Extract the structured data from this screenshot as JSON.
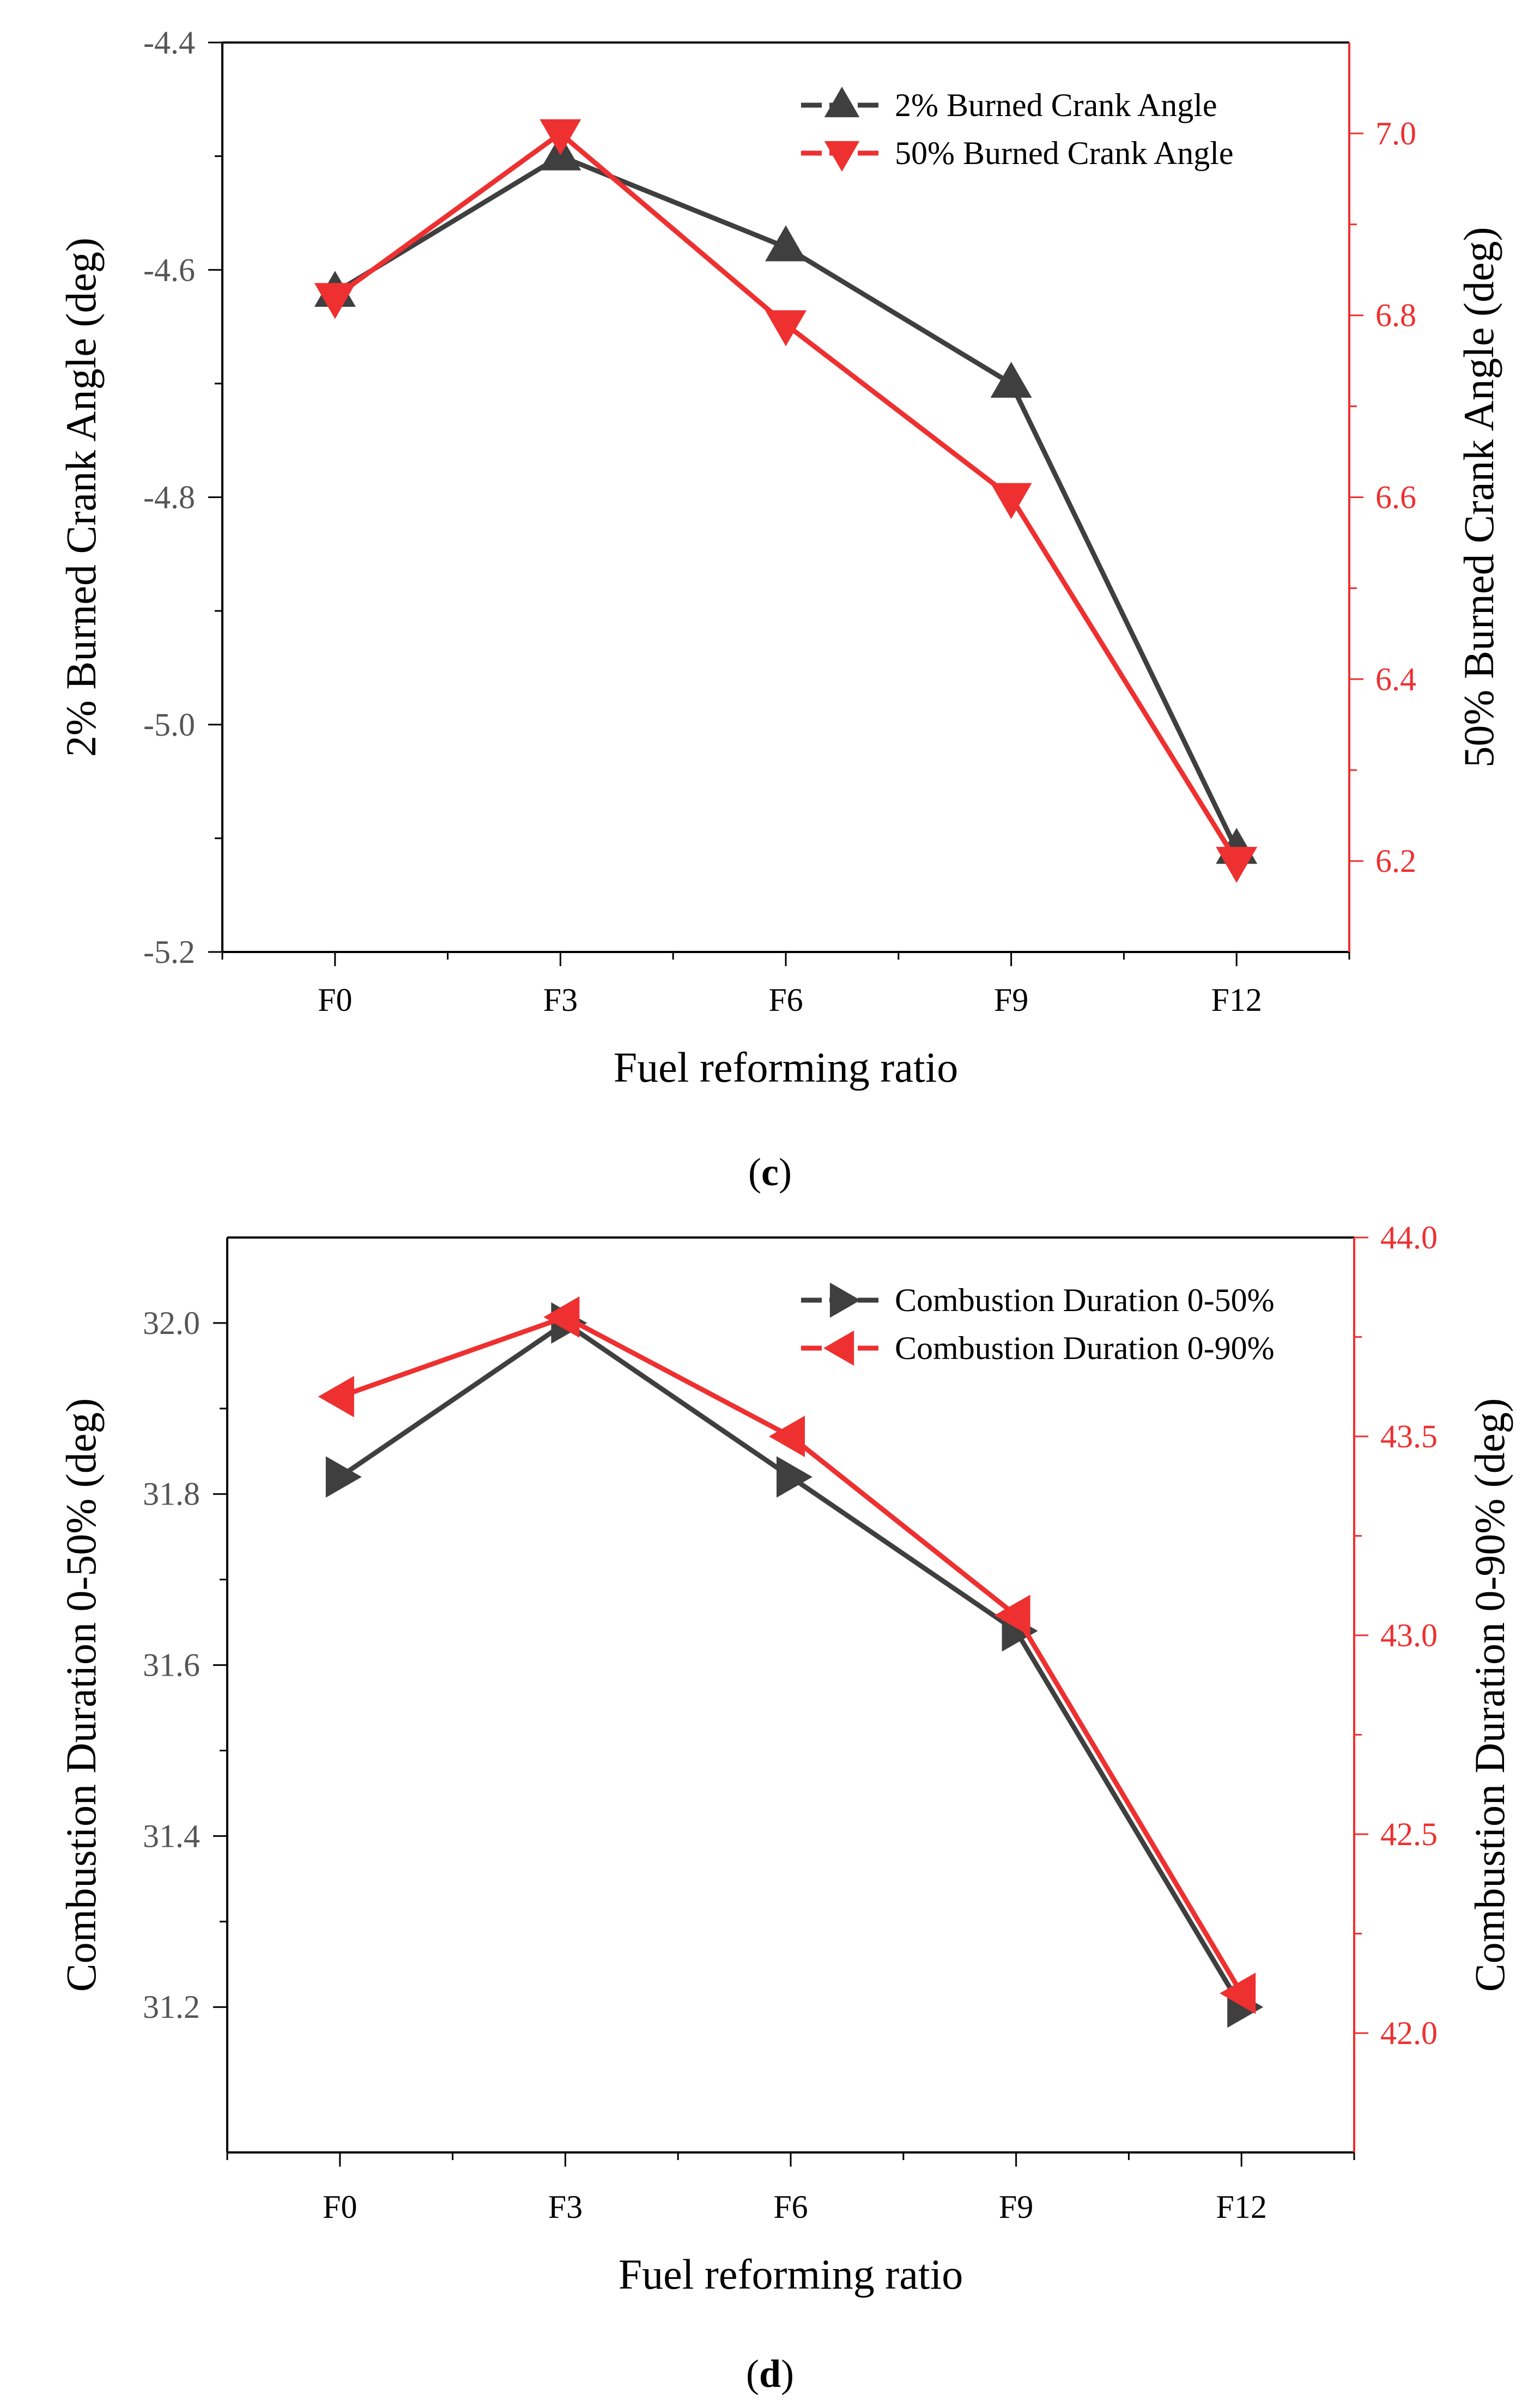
{
  "colors": {
    "primary": "#3f3f3f",
    "secondary": "#ee3030",
    "frame": "#000000"
  },
  "chart_data": [
    {
      "type": "line",
      "panel_label": "c",
      "categories": [
        "F0",
        "F3",
        "F6",
        "F9",
        "F12"
      ],
      "xlabel": "Fuel reforming ratio",
      "ylabel": "2% Burned Crank Angle (deg)",
      "ylabel_right": "50% Burned Crank Angle (deg)",
      "ylim": [
        -5.2,
        -4.4
      ],
      "ylim_right": [
        6.1,
        7.1
      ],
      "yticks": [
        "-5.2",
        "-5.0",
        "-4.8",
        "-4.6",
        "-4.4"
      ],
      "yticks_right": [
        "6.2",
        "6.4",
        "6.6",
        "6.8",
        "7.0"
      ],
      "grid": false,
      "legend_position": "top-right",
      "series": [
        {
          "name": "2% Burned Crank Angle",
          "axis": "left",
          "marker": "triangle-up",
          "color": "#3f3f3f",
          "values": [
            -4.62,
            -4.5,
            -4.58,
            -4.7,
            -5.11
          ]
        },
        {
          "name": "50% Burned Crank Angle",
          "axis": "right",
          "marker": "triangle-down",
          "color": "#ee3030",
          "values": [
            6.82,
            7.0,
            6.79,
            6.6,
            6.2
          ]
        }
      ]
    },
    {
      "type": "line",
      "panel_label": "d",
      "categories": [
        "F0",
        "F3",
        "F6",
        "F9",
        "F12"
      ],
      "xlabel": "Fuel reforming ratio",
      "ylabel": "Combustion Duration 0-50% (deg)",
      "ylabel_right": "Combustion Duration 0-90% (deg)",
      "ylim": [
        31.03,
        32.1
      ],
      "ylim_right": [
        41.7,
        44.0
      ],
      "yticks": [
        "31.2",
        "31.4",
        "31.6",
        "31.8",
        "32.0"
      ],
      "yticks_right": [
        "42.0",
        "42.5",
        "43.0",
        "43.5",
        "44.0"
      ],
      "grid": false,
      "legend_position": "top-right",
      "series": [
        {
          "name": "Combustion Duration 0-50%",
          "axis": "left",
          "marker": "triangle-right",
          "color": "#3f3f3f",
          "values": [
            31.82,
            32.0,
            31.82,
            31.64,
            31.2
          ]
        },
        {
          "name": "Combustion Duration 0-90%",
          "axis": "right",
          "marker": "triangle-left",
          "color": "#ee3030",
          "values": [
            43.6,
            43.8,
            43.5,
            43.05,
            42.1
          ]
        }
      ]
    }
  ]
}
